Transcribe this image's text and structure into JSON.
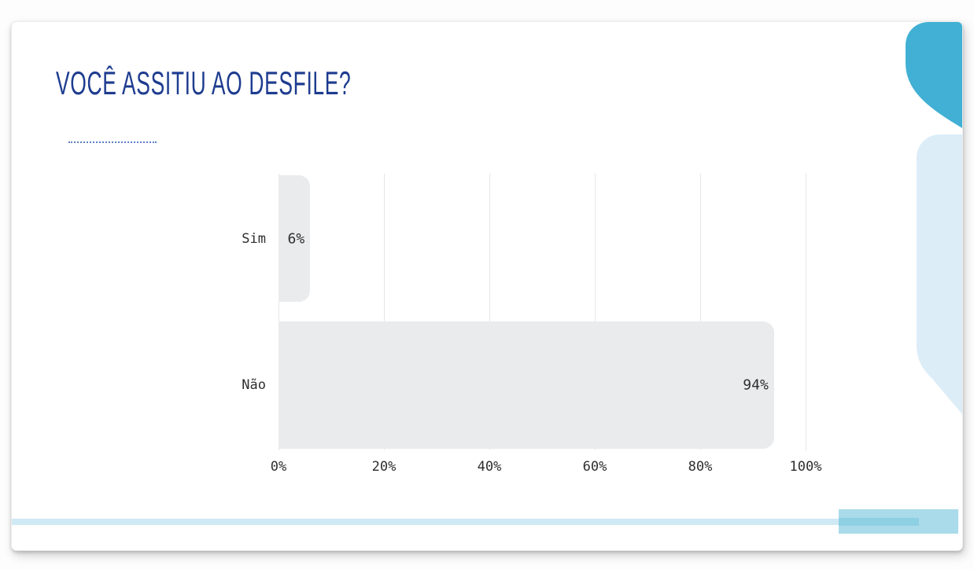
{
  "slide": {
    "title": "VOCÊ ASSITIU AO DESFILE?"
  },
  "chart_data": {
    "type": "bar",
    "orientation": "horizontal",
    "title": "VOCÊ ASSITIU AO DESFILE?",
    "categories": [
      "Sim",
      "Não"
    ],
    "values": [
      6,
      94
    ],
    "value_labels": [
      "6%",
      "94%"
    ],
    "x_ticks": [
      {
        "value": 0,
        "label": "0%"
      },
      {
        "value": 20,
        "label": "20%"
      },
      {
        "value": 40,
        "label": "40%"
      },
      {
        "value": 60,
        "label": "60%"
      },
      {
        "value": 80,
        "label": "80%"
      },
      {
        "value": 100,
        "label": "100%"
      }
    ],
    "xlim": [
      0,
      100
    ],
    "grid": "vertical",
    "legend": "none",
    "bar_color": "#e9ebec",
    "text_color": "#2e2e2e"
  },
  "theme": {
    "title_color": "#1e3c8f",
    "dotted_divider_color": "#5b7ec7",
    "accent_teal": "#41b0d4",
    "accent_light_panel": "#dcedf8",
    "footer_strip_color": "#cfe9f5",
    "footer_block_color": "#a9dbea",
    "footer_stripe_color": "#8ed0e3",
    "card_background": "#ffffff"
  }
}
